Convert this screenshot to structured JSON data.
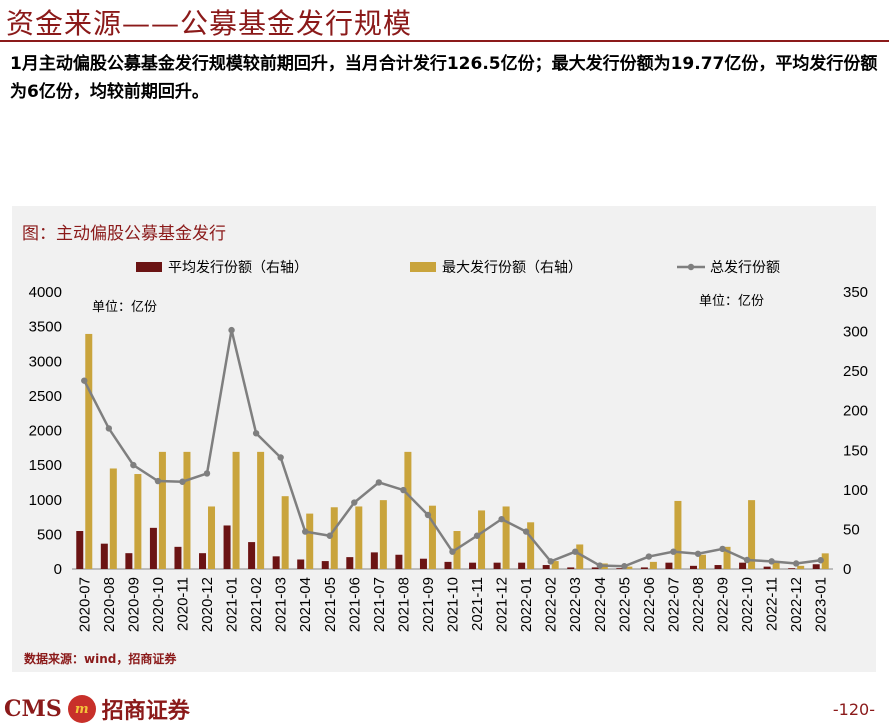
{
  "header": {
    "title": "资金来源——公募基金发行规模",
    "summary": "1月主动偏股公募基金发行规模较前期回升，当月合计发行126.5亿份；最大发行份额为19.77亿份，平均发行份额为6亿份，均较前期回升。"
  },
  "chart_data": {
    "type": "bar",
    "title": "图：主动偏股公募基金发行",
    "unit_left": "单位：亿份",
    "unit_right": "单位：亿份",
    "source": "数据来源：wind，招商证券",
    "categories": [
      "2020-07",
      "2020-08",
      "2020-09",
      "2020-10",
      "2020-11",
      "2020-12",
      "2021-01",
      "2021-02",
      "2021-03",
      "2021-04",
      "2021-05",
      "2021-06",
      "2021-07",
      "2021-08",
      "2021-09",
      "2021-10",
      "2021-11",
      "2021-12",
      "2022-01",
      "2022-02",
      "2022-03",
      "2022-04",
      "2022-05",
      "2022-06",
      "2022-07",
      "2022-08",
      "2022-09",
      "2022-10",
      "2022-11",
      "2022-12",
      "2023-01"
    ],
    "left_axis": {
      "min": 0,
      "max": 4000,
      "ticks": [
        0,
        500,
        1000,
        1500,
        2000,
        2500,
        3000,
        3500,
        4000
      ]
    },
    "right_axis": {
      "min": 0,
      "max": 350,
      "ticks": [
        0,
        50,
        100,
        150,
        200,
        250,
        300,
        350
      ]
    },
    "legend_placement": "top",
    "series": [
      {
        "name": "平均发行份额（右轴）",
        "type": "bar",
        "axis": "right",
        "color": "#6B1414",
        "values": [
          48,
          32,
          20,
          52,
          28,
          20,
          55,
          34,
          16,
          12,
          10,
          15,
          21,
          18,
          13,
          9,
          8,
          8,
          8,
          5,
          2,
          2,
          1,
          2,
          8,
          4,
          5,
          8,
          3,
          1,
          6
        ]
      },
      {
        "name": "最大发行份额（右轴）",
        "type": "bar",
        "axis": "right",
        "color": "#C9A43C",
        "values": [
          297,
          127,
          120,
          148,
          148,
          79,
          148,
          148,
          92,
          70,
          78,
          79,
          87,
          148,
          80,
          48,
          74,
          79,
          59,
          10,
          31,
          7,
          3,
          9,
          86,
          18,
          28,
          87,
          10,
          4,
          19.77
        ]
      },
      {
        "name": "总发行份额",
        "type": "line",
        "axis": "left",
        "color": "#7F7F7F",
        "values": [
          2720,
          2030,
          1500,
          1270,
          1260,
          1380,
          3450,
          1960,
          1610,
          540,
          480,
          960,
          1250,
          1140,
          780,
          250,
          480,
          720,
          540,
          110,
          250,
          50,
          40,
          180,
          250,
          220,
          290,
          130,
          110,
          80,
          126.5
        ]
      }
    ]
  },
  "footer": {
    "logo_text": "CMS",
    "logo_mark": "m",
    "company": "招商证券",
    "page": "-120-"
  }
}
